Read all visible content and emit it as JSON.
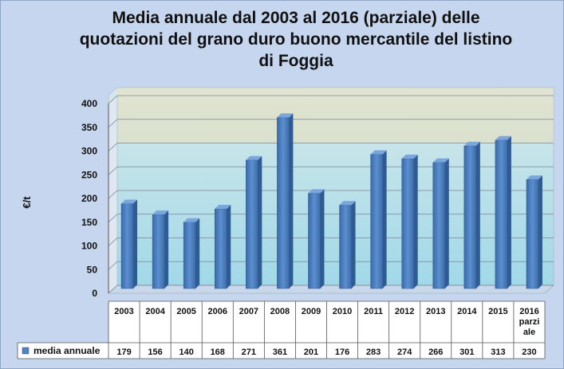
{
  "chart_data": {
    "type": "bar",
    "title": "Media annuale dal 2003 al 2016 (parziale) delle quotazioni del grano duro buono mercantile del listino di Foggia",
    "title_lines": [
      "Media annuale dal 2003 al 2016 (parziale) delle",
      "quotazioni del grano duro buono mercantile del listino",
      "di Foggia"
    ],
    "xlabel": "",
    "ylabel": "€/t",
    "ylim": [
      0,
      400
    ],
    "yticks": [
      0,
      50,
      100,
      150,
      200,
      250,
      300,
      350,
      400
    ],
    "grid": true,
    "legend": "bottom-left (data table)",
    "categories": [
      "2003",
      "2004",
      "2005",
      "2006",
      "2007",
      "2008",
      "2009",
      "2010",
      "2011",
      "2012",
      "2013",
      "2014",
      "2015",
      "2016 parziale"
    ],
    "category_lines": [
      [
        "2003"
      ],
      [
        "2004"
      ],
      [
        "2005"
      ],
      [
        "2006"
      ],
      [
        "2007"
      ],
      [
        "2008"
      ],
      [
        "2009"
      ],
      [
        "2010"
      ],
      [
        "2011"
      ],
      [
        "2012"
      ],
      [
        "2013"
      ],
      [
        "2014"
      ],
      [
        "2015"
      ],
      [
        "2016",
        "parzi",
        "ale"
      ]
    ],
    "series": [
      {
        "name": "media annuale",
        "values": [
          179,
          156,
          140,
          168,
          271,
          361,
          201,
          176,
          283,
          274,
          266,
          301,
          313,
          230
        ],
        "color": "#4f81bd"
      }
    ]
  }
}
